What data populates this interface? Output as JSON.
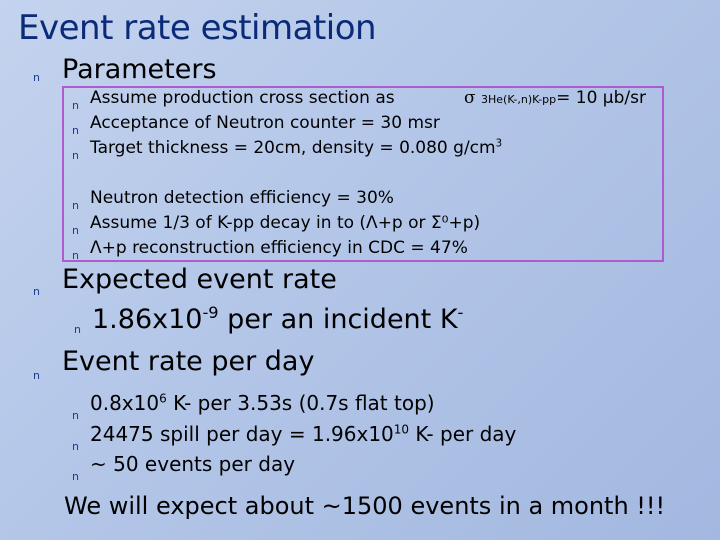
{
  "title": "Event rate estimation",
  "sections": {
    "parameters": {
      "heading": "Parameters",
      "items": {
        "cross_section_text": "Assume production cross section as",
        "cross_section_symbol": "σ",
        "cross_section_subscript": "3He(K-,n)K-pp",
        "cross_section_value": "= 10 μb/sr",
        "acceptance": "Acceptance of Neutron counter = 30 msr",
        "target_base": "Target thickness = 20cm, density = 0.080 g/cm",
        "target_exp": "3",
        "neutron_eff": "Neutron detection efficiency = 30%",
        "decay_assume": "Assume 1/3 of K-pp decay in to (Λ+p or Σ⁰+p)",
        "reconstruction": "Λ+p reconstruction efficiency in CDC = 47%"
      }
    },
    "expected": {
      "heading": "Expected event rate",
      "value_base": "1.86x10",
      "value_exp": "-9",
      "value_tail": " per an incident K",
      "value_tail_sup": "-"
    },
    "per_day": {
      "heading": "Event rate per day",
      "line1_pre": "0.8x10",
      "line1_exp": "6",
      "line1_post": " K- per 3.53s (0.7s flat top)",
      "line2_pre": "24475 spill per day = 1.96x10",
      "line2_exp": "10",
      "line2_post": " K- per day",
      "line3": "~ 50 events per day"
    }
  },
  "footer": "We will expect about ~1500 events in a month !!!",
  "bullet": "n",
  "colors": {
    "title": "#0b2b78",
    "bullet": "#1d3d8f",
    "box_border": "#b05ad0"
  }
}
